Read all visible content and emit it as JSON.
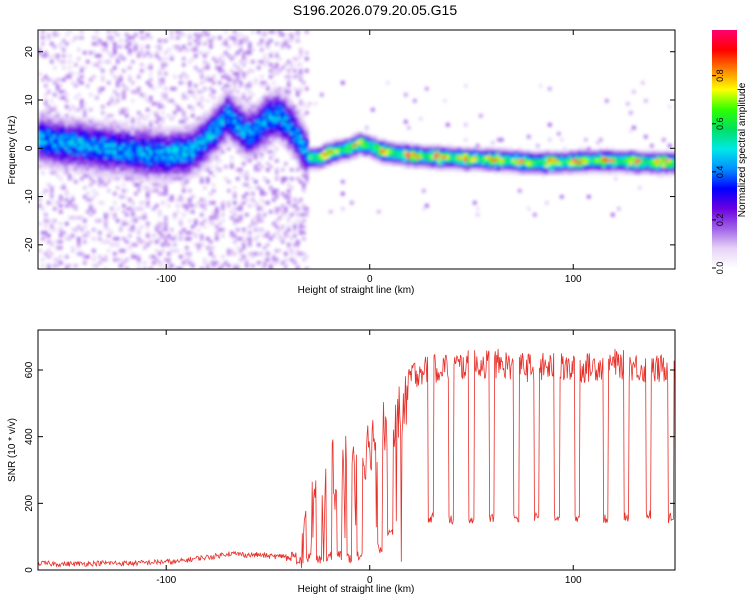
{
  "title": "S196.2026.079.20.05.G15",
  "chart_data": [
    {
      "type": "heatmap",
      "xlabel": "Height of straight line (km)",
      "ylabel": "Frequency (Hz)",
      "xlim": [
        -163,
        150
      ],
      "ylim": [
        -25,
        24.5
      ],
      "xticks": [
        -100,
        0,
        100
      ],
      "yticks": [
        -20,
        -10,
        0,
        10,
        20
      ],
      "colorbar": {
        "label": "Normalized spectral amplitude",
        "range": [
          0,
          0.99
        ],
        "ticks": [
          0.0,
          0.2,
          0.4,
          0.6,
          0.8
        ],
        "colors": [
          "#ffffff",
          "#e6d2f7",
          "#a060e8",
          "#6a00e0",
          "#0000ff",
          "#0090ff",
          "#00e8e8",
          "#00e060",
          "#30ff00",
          "#ffff00",
          "#ff8000",
          "#ff0000",
          "#ff0070"
        ]
      },
      "ridge": {
        "x": [
          -163,
          -150,
          -140,
          -130,
          -120,
          -110,
          -100,
          -95,
          -90,
          -85,
          -80,
          -75,
          -70,
          -65,
          -60,
          -55,
          -50,
          -45,
          -40,
          -35,
          -30,
          -25,
          -20,
          -15,
          -10,
          -5,
          0,
          5,
          10,
          20,
          30,
          40,
          50,
          60,
          70,
          80,
          90,
          100,
          110,
          120,
          130,
          140,
          150
        ],
        "y": [
          2,
          1,
          0.5,
          0,
          -0.5,
          -1,
          -1.5,
          -1,
          -1,
          0,
          2,
          4,
          7,
          5,
          3,
          4,
          6,
          7,
          5,
          2,
          -2,
          -2,
          -1,
          -0.5,
          0,
          1,
          0.5,
          -0.5,
          -1,
          -1.5,
          -1.8,
          -2,
          -2.2,
          -2.4,
          -2.6,
          -3,
          -3,
          -2.8,
          -2.6,
          -2.6,
          -2.8,
          -3,
          -3
        ]
      }
    },
    {
      "type": "line",
      "xlabel": "Height of straight line (km)",
      "ylabel": "SNR (10 * v/v)",
      "xlim": [
        -163,
        150
      ],
      "ylim": [
        0,
        720
      ],
      "xticks": [
        -100,
        0,
        100
      ],
      "yticks": [
        0,
        200,
        400,
        600
      ],
      "series": [
        {
          "name": "SNR",
          "color": "#e8302a",
          "x": [
            -163,
            -150,
            -140,
            -130,
            -120,
            -110,
            -100,
            -95,
            -90,
            -85,
            -80,
            -75,
            -70,
            -65,
            -60,
            -55,
            -50,
            -45,
            -40,
            -35,
            -30,
            -27,
            -24,
            -20,
            -15,
            -10,
            -5,
            0,
            5,
            10,
            15,
            18,
            20,
            25,
            30,
            35,
            40,
            50,
            60,
            70,
            80,
            90,
            100,
            110,
            120,
            130,
            140,
            150
          ],
          "values": [
            20,
            18,
            19,
            21,
            20,
            22,
            25,
            24,
            30,
            35,
            38,
            42,
            50,
            48,
            45,
            46,
            42,
            40,
            45,
            48,
            140,
            220,
            280,
            300,
            320,
            330,
            330,
            380,
            420,
            440,
            470,
            510,
            580,
            600,
            600,
            610,
            610,
            615,
            620,
            615,
            605,
            610,
            600,
            610,
            620,
            610,
            600,
            610
          ],
          "dips_x": [
            -40,
            -35,
            -30,
            -25,
            -20,
            -15,
            -10,
            -5,
            5,
            10,
            30,
            40,
            50,
            60,
            72,
            82,
            92,
            102,
            116,
            126,
            137,
            148
          ],
          "dips_y": [
            20,
            15,
            20,
            15,
            25,
            30,
            20,
            30,
            50,
            90,
            140,
            135,
            140,
            140,
            140,
            145,
            145,
            140,
            140,
            145,
            150,
            140
          ]
        }
      ]
    }
  ]
}
